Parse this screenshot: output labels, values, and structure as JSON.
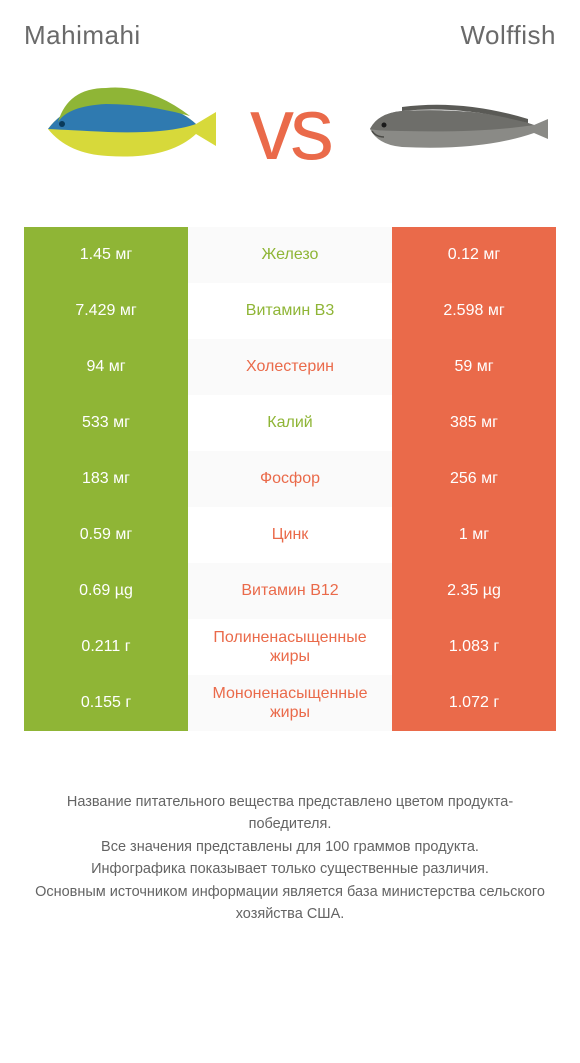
{
  "product_left": "Mahimahi",
  "product_right": "Wolffish",
  "vs": "vs",
  "colors": {
    "left": "#8fb536",
    "right": "#ea6a4a",
    "mid_odd_bg": "#fafafa",
    "mid_even_bg": "#ffffff"
  },
  "rows": [
    {
      "left": "1.45 мг",
      "label": "Железо",
      "right": "0.12 мг",
      "winner": "left"
    },
    {
      "left": "7.429 мг",
      "label": "Витамин B3",
      "right": "2.598 мг",
      "winner": "left"
    },
    {
      "left": "94 мг",
      "label": "Холестерин",
      "right": "59 мг",
      "winner": "right"
    },
    {
      "left": "533 мг",
      "label": "Калий",
      "right": "385 мг",
      "winner": "left"
    },
    {
      "left": "183 мг",
      "label": "Фосфор",
      "right": "256 мг",
      "winner": "right"
    },
    {
      "left": "0.59 мг",
      "label": "Цинк",
      "right": "1 мг",
      "winner": "right"
    },
    {
      "left": "0.69 µg",
      "label": "Витамин B12",
      "right": "2.35 µg",
      "winner": "right"
    },
    {
      "left": "0.211 г",
      "label": "Полиненасыщенные жиры",
      "right": "1.083 г",
      "winner": "right"
    },
    {
      "left": "0.155 г",
      "label": "Мононенасыщенные жиры",
      "right": "1.072 г",
      "winner": "right"
    }
  ],
  "footer": [
    "Название питательного вещества представлено цветом продукта-победителя.",
    "Все значения представлены для 100 граммов продукта.",
    "Инфографика показывает только существенные различия.",
    "Основным источником информации является база министерства сельского хозяйства США."
  ]
}
